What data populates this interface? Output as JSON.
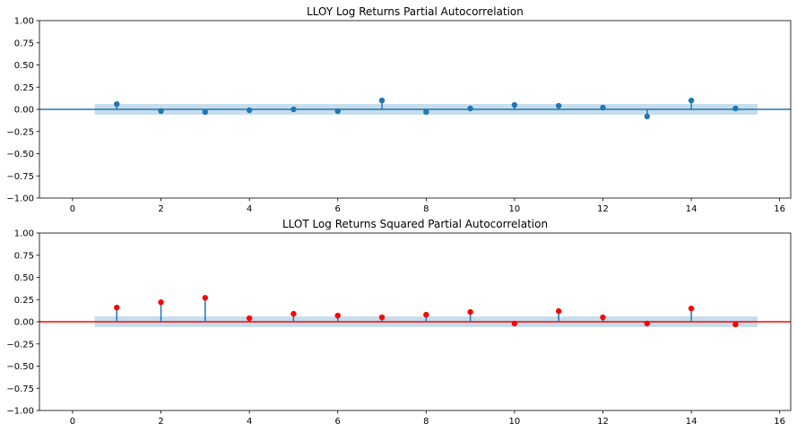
{
  "chart_data": [
    {
      "type": "stem",
      "title": "LLOY Log Returns Partial Autocorrelation",
      "xlabel": "",
      "ylabel": "",
      "xlim": [
        -0.75,
        16.25
      ],
      "ylim": [
        -1.0,
        1.0
      ],
      "x_ticks": [
        "0",
        "2",
        "4",
        "6",
        "8",
        "10",
        "12",
        "14",
        "16"
      ],
      "y_ticks": [
        "1.00",
        "0.75",
        "0.50",
        "0.25",
        "0.00",
        "−0.25",
        "−0.50",
        "−0.75",
        "−1.00"
      ],
      "confidence_band": {
        "x_range": [
          0.5,
          15.5
        ],
        "lower": -0.06,
        "upper": 0.06
      },
      "marker_color": "#1f77b4",
      "stem_color": "#1f77b4",
      "baseline_color": "#1f77b4",
      "band_color": "#1f77b4",
      "grid": false,
      "x": [
        1,
        2,
        3,
        4,
        5,
        6,
        7,
        8,
        9,
        10,
        11,
        12,
        13,
        14,
        15
      ],
      "values": [
        0.06,
        -0.02,
        -0.03,
        -0.01,
        0.0,
        -0.02,
        0.1,
        -0.03,
        0.01,
        0.05,
        0.04,
        0.02,
        -0.08,
        0.1,
        0.01
      ]
    },
    {
      "type": "stem",
      "title": "LLOT Log Returns Squared Partial Autocorrelation",
      "xlabel": "",
      "ylabel": "",
      "xlim": [
        -0.75,
        16.25
      ],
      "ylim": [
        -1.0,
        1.0
      ],
      "x_ticks": [
        "0",
        "2",
        "4",
        "6",
        "8",
        "10",
        "12",
        "14",
        "16"
      ],
      "y_ticks": [
        "1.00",
        "0.75",
        "0.50",
        "0.25",
        "0.00",
        "−0.25",
        "−0.50",
        "−0.75",
        "−1.00"
      ],
      "confidence_band": {
        "x_range": [
          0.5,
          15.5
        ],
        "lower": -0.06,
        "upper": 0.06
      },
      "marker_color": "#ff0000",
      "stem_color": "#1f77b4",
      "baseline_color": "#ff0000",
      "band_color": "#1f77b4",
      "grid": false,
      "x": [
        1,
        2,
        3,
        4,
        5,
        6,
        7,
        8,
        9,
        10,
        11,
        12,
        13,
        14,
        15
      ],
      "values": [
        0.16,
        0.22,
        0.27,
        0.04,
        0.09,
        0.07,
        0.05,
        0.08,
        0.11,
        -0.02,
        0.12,
        0.05,
        -0.02,
        0.15,
        -0.03
      ]
    }
  ]
}
